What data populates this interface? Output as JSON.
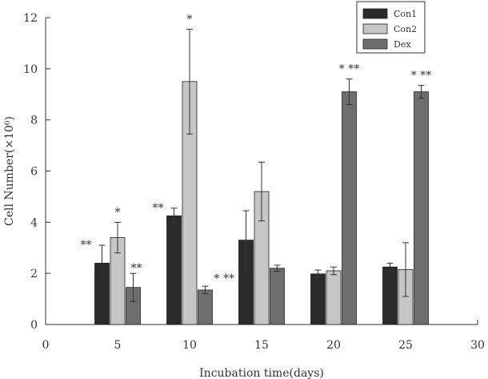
{
  "chart_data": {
    "type": "bar",
    "title": "",
    "xlabel": "Incubation time(days)",
    "ylabel": "Cell Number(×10⁶)",
    "xlim": [
      0,
      30
    ],
    "ylim": [
      0,
      12
    ],
    "x_ticks": [
      "0",
      "5",
      "10",
      "15",
      "20",
      "25",
      "30"
    ],
    "y_ticks": [
      "0",
      "2",
      "4",
      "6",
      "8",
      "10",
      "12"
    ],
    "x": [
      5,
      10,
      15,
      20,
      25
    ],
    "legend_position": "top-right",
    "grid": false,
    "series": [
      {
        "name": "Con1",
        "color": "#2b2b2b",
        "values": [
          2.4,
          4.25,
          3.3,
          1.98,
          2.25
        ],
        "errors": [
          0.7,
          0.3,
          1.15,
          0.15,
          0.15
        ],
        "annotations": [
          "**",
          "**",
          "",
          "",
          ""
        ]
      },
      {
        "name": "Con2",
        "color": "#c6c6c6",
        "values": [
          3.4,
          9.5,
          5.2,
          2.1,
          2.15
        ],
        "errors": [
          0.6,
          2.05,
          1.15,
          0.15,
          1.05
        ],
        "annotations": [
          "*",
          "*",
          "",
          "",
          ""
        ]
      },
      {
        "name": "Dex",
        "color": "#6e6e6e",
        "values": [
          1.45,
          1.35,
          2.2,
          9.1,
          9.1
        ],
        "errors": [
          0.55,
          0.15,
          0.12,
          0.5,
          0.25
        ],
        "annotations": [
          "**",
          "* **",
          "",
          "* **",
          "* **"
        ]
      }
    ]
  }
}
